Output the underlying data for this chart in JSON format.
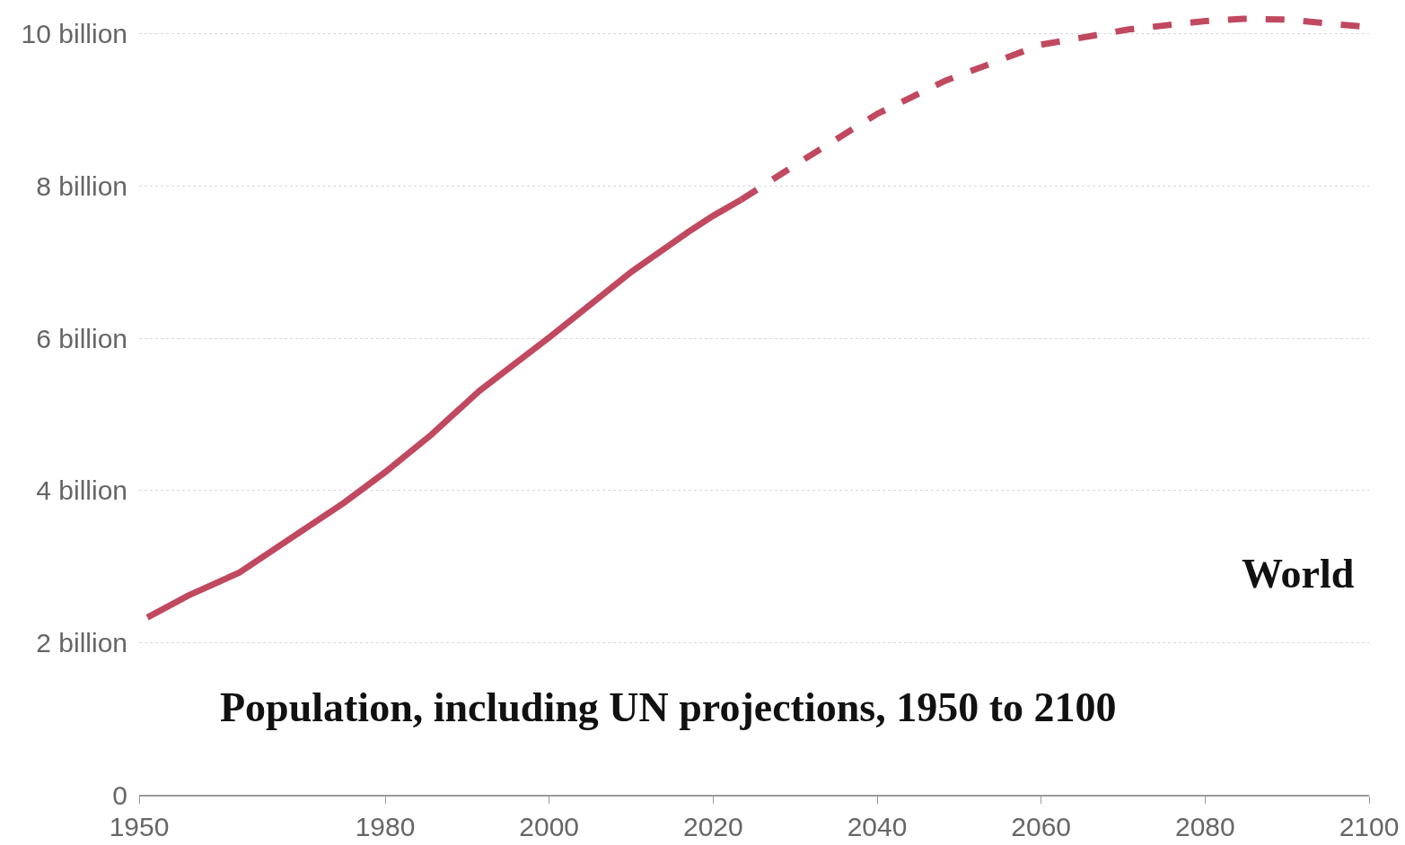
{
  "chart_data": {
    "type": "line",
    "title": "Population, including UN projections, 1950 to 2100",
    "series": [
      {
        "color": "#c0495f",
        "line_style": "solid",
        "x": [
          1951,
          1956,
          1962.2,
          1968.6,
          1975,
          1980,
          1985.6,
          1991.5,
          2000,
          2010.1,
          2017,
          2020,
          2023.4
        ],
        "values": [
          2.33,
          2.62,
          2.92,
          3.38,
          3.84,
          4.24,
          4.73,
          5.31,
          6.01,
          6.88,
          7.4,
          7.61,
          7.82
        ]
      },
      {
        "name": "World",
        "color": "#c0495f",
        "line_style": "dashed",
        "x": [
          2023.4,
          2030.9,
          2040,
          2048.4,
          2060,
          2070.7,
          2080,
          2084.6,
          2089.9,
          2100
        ],
        "values": [
          7.82,
          8.34,
          8.95,
          9.39,
          9.86,
          10.06,
          10.17,
          10.2,
          10.19,
          10.09
        ]
      }
    ],
    "xlim": [
      1950,
      2100
    ],
    "xticks": [
      1950,
      1980,
      2000,
      2020,
      2040,
      2060,
      2080,
      2100
    ],
    "ylim": [
      0,
      10.4
    ],
    "yticks": [
      0,
      {
        "value": 2,
        "label": "2 billion"
      },
      {
        "value": 4,
        "label": "4 billion"
      },
      {
        "value": 6,
        "label": "6 billion"
      },
      {
        "value": 8,
        "label": "8 billion"
      },
      {
        "value": 10,
        "label": "10 billion"
      }
    ],
    "grid": "y",
    "legend": false,
    "marker": "none"
  }
}
